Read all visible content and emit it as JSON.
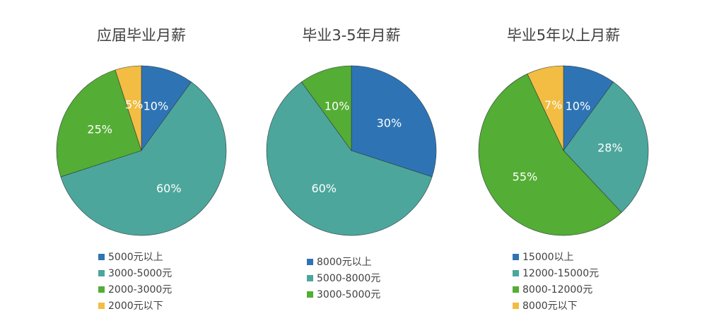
{
  "colors": {
    "blue": "#2e74b5",
    "teal": "#4ca69c",
    "green": "#54ad35",
    "yellow": "#f2bd42"
  },
  "chart_data": [
    {
      "type": "pie",
      "title": "应届毕业月薪",
      "slices": [
        {
          "label": "5000元以上",
          "value": 10,
          "display": "10%",
          "color": "#2e74b5"
        },
        {
          "label": "3000-5000元",
          "value": 60,
          "display": "60%",
          "color": "#4ca69c"
        },
        {
          "label": "2000-3000元",
          "value": 25,
          "display": "25%",
          "color": "#54ad35"
        },
        {
          "label": "2000元以下",
          "value": 5,
          "display": "5%",
          "color": "#f2bd42"
        }
      ],
      "legend_placement": "bottom"
    },
    {
      "type": "pie",
      "title": "毕业3-5年月薪",
      "slices": [
        {
          "label": "8000元以上",
          "value": 30,
          "display": "30%",
          "color": "#2e74b5"
        },
        {
          "label": "5000-8000元",
          "value": 60,
          "display": "60%",
          "color": "#4ca69c"
        },
        {
          "label": "3000-5000元",
          "value": 10,
          "display": "10%",
          "color": "#54ad35"
        }
      ],
      "legend_placement": "bottom"
    },
    {
      "type": "pie",
      "title": "毕业5年以上月薪",
      "slices": [
        {
          "label": "15000以上",
          "value": 10,
          "display": "10%",
          "color": "#2e74b5"
        },
        {
          "label": "12000-15000元",
          "value": 28,
          "display": "28%",
          "color": "#4ca69c"
        },
        {
          "label": "8000-12000元",
          "value": 55,
          "display": "55%",
          "color": "#54ad35"
        },
        {
          "label": "8000元以下",
          "value": 7,
          "display": "7%",
          "color": "#f2bd42"
        }
      ],
      "legend_placement": "bottom"
    }
  ]
}
